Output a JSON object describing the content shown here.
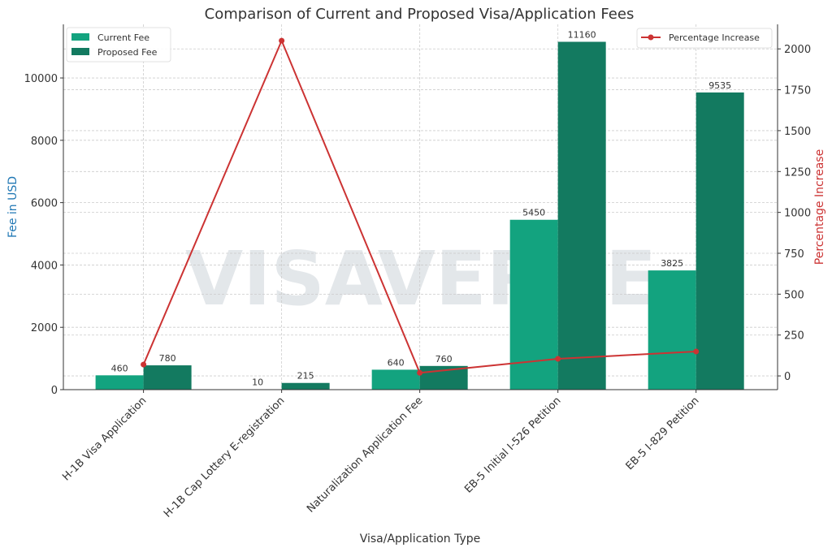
{
  "chart_data": {
    "type": "bar",
    "title": "Comparison of Current and Proposed Visa/Application Fees",
    "xlabel": "Visa/Application Type",
    "ylabel": "Fee in USD",
    "y2label": "Percentage Increase",
    "categories": [
      "H-1B Visa Application",
      "H-1B Cap Lottery E-registration",
      "Naturalization Application Fee",
      "EB-5 Initial I-526 Petition",
      "EB-5 I-829 Petition"
    ],
    "series": [
      {
        "name": "Current Fee",
        "type": "bar",
        "axis": "left",
        "color": "#13a37f",
        "values": [
          460,
          10,
          640,
          5450,
          3825
        ]
      },
      {
        "name": "Proposed Fee",
        "type": "bar",
        "axis": "left",
        "color": "#137a60",
        "values": [
          780,
          215,
          760,
          11160,
          9535
        ]
      },
      {
        "name": "Percentage Increase",
        "type": "line",
        "axis": "right",
        "color": "#cc3333",
        "values": [
          69.57,
          2050,
          18.75,
          104.77,
          149.28
        ]
      }
    ],
    "ylim": [
      0,
      11720
    ],
    "y2lim": [
      -84,
      2150
    ],
    "yticks": [
      0,
      2000,
      4000,
      6000,
      8000,
      10000
    ],
    "y2ticks": [
      0,
      250,
      500,
      750,
      1000,
      1250,
      1500,
      1750,
      2000
    ],
    "grid": true,
    "legend_left": "top-left",
    "legend_right": "top-right",
    "watermark": "VISAVERGE",
    "ylabel_color": "#1f77b4",
    "y2label_color": "#cc3333"
  }
}
